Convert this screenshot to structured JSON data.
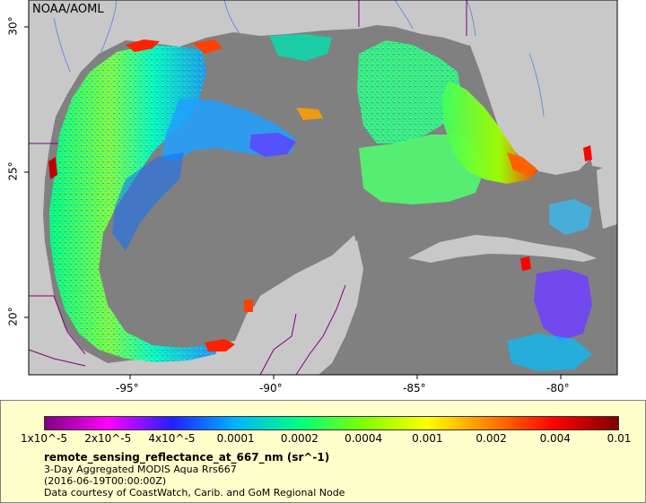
{
  "map": {
    "credit": "NOAA/AOML",
    "lon_ticks": [
      "-95°",
      "-90°",
      "-85°",
      "-80°"
    ],
    "lat_ticks": [
      "30°",
      "25°",
      "20°"
    ],
    "colors": {
      "water_nodata": "#808080",
      "land": "#c8c8c8",
      "boundaries": "#800080",
      "rivers": "#6a8fd8"
    }
  },
  "legend": {
    "background": "#ffffcc",
    "colorbar_ticks": [
      "1x10^-5",
      "2x10^-5",
      "4x10^-5",
      "0.0001",
      "0.0002",
      "0.0004",
      "0.001",
      "0.002",
      "0.004",
      "0.01"
    ],
    "colorbar_colors": [
      "#800080",
      "#ff00ff",
      "#2020ff",
      "#00b4ff",
      "#00ff80",
      "#80ff00",
      "#ffff00",
      "#ff8000",
      "#ff0000",
      "#800000"
    ],
    "variable": "remote_sensing_reflectance_at_667_nm (sr^-1)",
    "lines": [
      "3-Day Aggregated MODIS Aqua Rrs667",
      "(2016-06-19T00:00:00Z)",
      "Data courtesy of CoastWatch, Carib. and GoM Regional Node"
    ]
  }
}
